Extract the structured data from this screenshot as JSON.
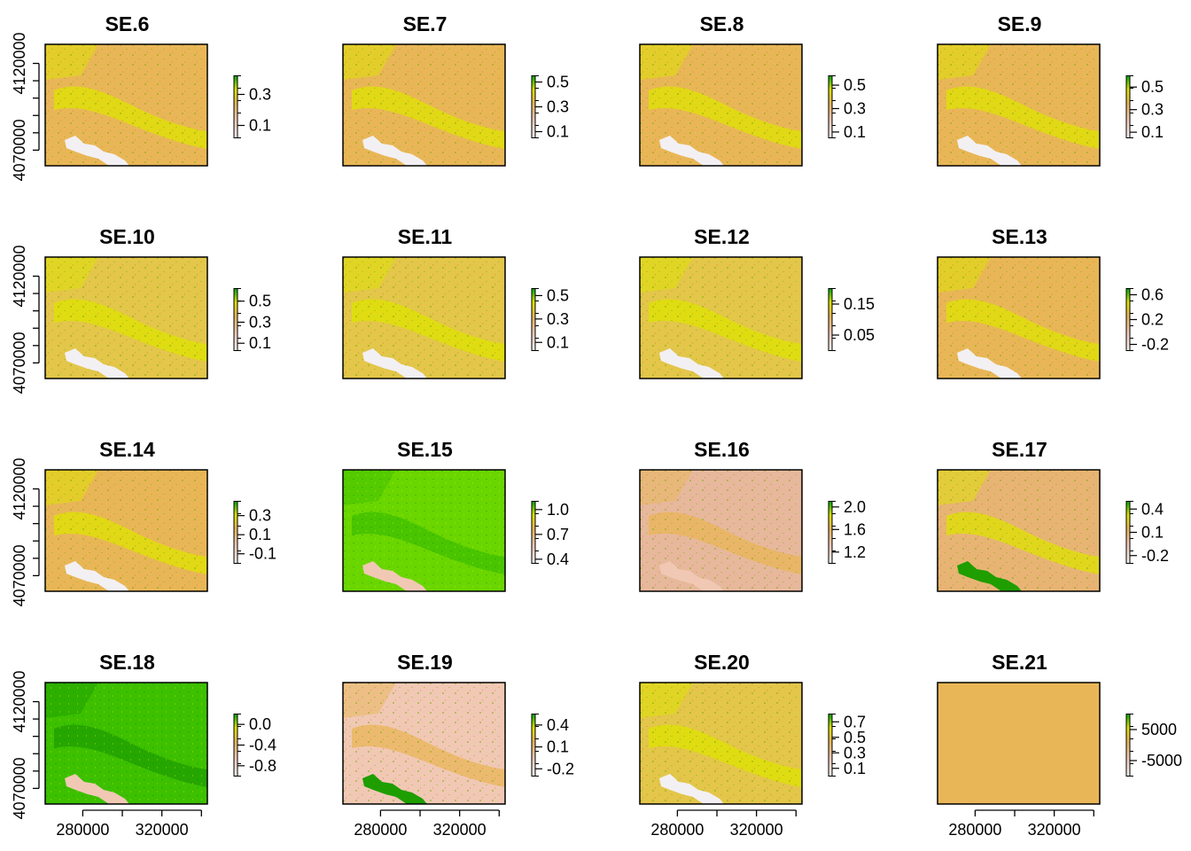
{
  "chart_data": {
    "type": "heatmap",
    "layout": {
      "rows": 4,
      "cols": 4
    },
    "x_axis": {
      "range": [
        261000,
        343000
      ],
      "ticks": [
        280000,
        300000,
        320000,
        340000
      ],
      "tick_labels": [
        "280000",
        "320000"
      ],
      "shown_on_row": 3
    },
    "y_axis": {
      "range": [
        4061000,
        4131000
      ],
      "ticks": [
        4070000,
        4080000,
        4090000,
        4100000,
        4110000,
        4120000
      ],
      "tick_labels": [
        "4070000",
        "4120000"
      ]
    },
    "colormap": "terrain (white-pink -> tan -> yellow -> green)",
    "panels": [
      {
        "name": "SE.6",
        "legend": {
          "range": [
            0.02,
            0.42
          ],
          "ticks": [
            0.1,
            0.3
          ],
          "labels": [
            "0.1",
            "0.3"
          ]
        },
        "style": "tan"
      },
      {
        "name": "SE.7",
        "legend": {
          "range": [
            0.05,
            0.55
          ],
          "ticks": [
            0.1,
            0.3,
            0.5
          ],
          "labels": [
            "0.1",
            "0.3",
            "0.5"
          ]
        },
        "style": "tan"
      },
      {
        "name": "SE.8",
        "legend": {
          "range": [
            0.05,
            0.58
          ],
          "ticks": [
            0.1,
            0.3,
            0.5
          ],
          "labels": [
            "0.1",
            "0.3",
            "0.5"
          ]
        },
        "style": "tan"
      },
      {
        "name": "SE.9",
        "legend": {
          "range": [
            0.05,
            0.6
          ],
          "ticks": [
            0.1,
            0.3,
            0.5
          ],
          "labels": [
            "0.1",
            "0.3",
            "0.5"
          ]
        },
        "style": "tan"
      },
      {
        "name": "SE.10",
        "legend": {
          "range": [
            0.03,
            0.62
          ],
          "ticks": [
            0.1,
            0.3,
            0.5
          ],
          "labels": [
            "0.1",
            "0.3",
            "0.5"
          ]
        },
        "style": "yellow"
      },
      {
        "name": "SE.11",
        "legend": {
          "range": [
            0.03,
            0.56
          ],
          "ticks": [
            0.1,
            0.3,
            0.5
          ],
          "labels": [
            "0.1",
            "0.3",
            "0.5"
          ]
        },
        "style": "yellow"
      },
      {
        "name": "SE.12",
        "legend": {
          "range": [
            0.0,
            0.2
          ],
          "ticks": [
            0.05,
            0.15
          ],
          "labels": [
            "0.05",
            "0.15"
          ]
        },
        "style": "yellow"
      },
      {
        "name": "SE.13",
        "legend": {
          "range": [
            -0.3,
            0.7
          ],
          "ticks": [
            -0.2,
            0.2,
            0.6
          ],
          "labels": [
            "-0.2",
            "0.2",
            "0.6"
          ]
        },
        "style": "tan"
      },
      {
        "name": "SE.14",
        "legend": {
          "range": [
            -0.2,
            0.45
          ],
          "ticks": [
            -0.1,
            0.1,
            0.3
          ],
          "labels": [
            "-0.1",
            "0.1",
            "0.3"
          ]
        },
        "style": "tan"
      },
      {
        "name": "SE.15",
        "legend": {
          "range": [
            0.35,
            1.1
          ],
          "ticks": [
            0.4,
            0.7,
            1.0
          ],
          "labels": [
            "0.4",
            "0.7",
            "1.0"
          ]
        },
        "style": "green"
      },
      {
        "name": "SE.16",
        "legend": {
          "range": [
            1.0,
            2.1
          ],
          "ticks": [
            1.2,
            1.6,
            2.0
          ],
          "labels": [
            "1.2",
            "1.6",
            "2.0"
          ]
        },
        "style": "pink"
      },
      {
        "name": "SE.17",
        "legend": {
          "range": [
            -0.3,
            0.5
          ],
          "ticks": [
            -0.2,
            0.1,
            0.4
          ],
          "labels": [
            "-0.2",
            "0.1",
            "0.4"
          ]
        },
        "style": "lake"
      },
      {
        "name": "SE.18",
        "legend": {
          "range": [
            -1.0,
            0.2
          ],
          "ticks": [
            -0.8,
            -0.4,
            0.0
          ],
          "labels": [
            "-0.8",
            "-0.4",
            "0.0"
          ]
        },
        "style": "green2"
      },
      {
        "name": "SE.19",
        "legend": {
          "range": [
            -0.3,
            0.55
          ],
          "ticks": [
            -0.2,
            0.1,
            0.4
          ],
          "labels": [
            "-0.2",
            "0.1",
            "0.4"
          ]
        },
        "style": "pinklake"
      },
      {
        "name": "SE.20",
        "legend": {
          "range": [
            0.0,
            0.8
          ],
          "ticks": [
            0.1,
            0.3,
            0.5,
            0.7
          ],
          "labels": [
            "0.1",
            "0.3",
            "0.5",
            "0.7"
          ]
        },
        "style": "yellow"
      },
      {
        "name": "SE.21",
        "legend": {
          "range": [
            -10000,
            10000
          ],
          "ticks": [
            -5000,
            5000
          ],
          "labels": [
            "-5000",
            "5000"
          ]
        },
        "style": "flat"
      }
    ]
  },
  "colors": {
    "pink": "#f1c8b4",
    "tan": "#e9b657",
    "yellow": "#dde300",
    "green": "#6ad600",
    "dark_green": "#1e9e00",
    "white": "#f3f0f3",
    "frame": "#000000"
  }
}
